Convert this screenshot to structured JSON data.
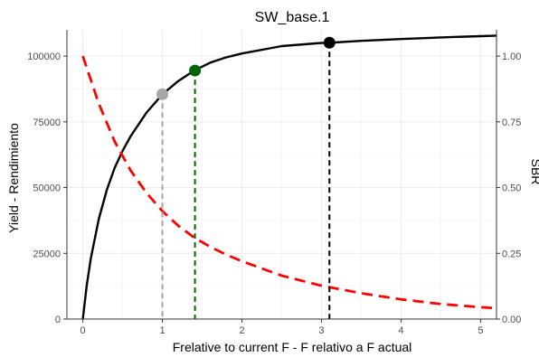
{
  "chart_data": {
    "type": "line",
    "title": "SW_base.1",
    "xlabel": "Frelative to current F - F relativo a F actual",
    "ylabel": "Yield - Rendimiento",
    "y2label": "SBR",
    "xlim": [
      -0.2,
      5.2
    ],
    "ylim": [
      0,
      110000
    ],
    "y2lim": [
      0,
      1.1
    ],
    "x_ticks": [
      0,
      1,
      2,
      3,
      4,
      5
    ],
    "y_ticks": [
      0,
      25000,
      50000,
      75000,
      100000
    ],
    "y2_ticks": [
      "0.00",
      "0.25",
      "0.50",
      "0.75",
      "1.00"
    ],
    "grid": true,
    "series": [
      {
        "axis": "left",
        "color": "#000000",
        "style": "solid",
        "x": [
          0,
          0.05,
          0.1,
          0.2,
          0.3,
          0.4,
          0.5,
          0.6,
          0.8,
          1.0,
          1.2,
          1.4,
          1.6,
          1.8,
          2.0,
          2.5,
          3.0,
          3.1,
          3.5,
          4.0,
          4.5,
          5.0,
          5.2
        ],
        "y": [
          0,
          13000,
          23000,
          38000,
          49000,
          57500,
          64000,
          69500,
          78500,
          85500,
          90500,
          94500,
          97500,
          99500,
          101000,
          103800,
          105000,
          105100,
          105800,
          106500,
          107100,
          107600,
          107800
        ]
      },
      {
        "axis": "right",
        "color": "#ff0000",
        "style": "dashed",
        "x": [
          0,
          0.2,
          0.4,
          0.6,
          0.8,
          1.0,
          1.2,
          1.4,
          1.6,
          1.8,
          2.0,
          2.5,
          3.0,
          3.5,
          4.0,
          4.5,
          5.0,
          5.2
        ],
        "y": [
          1.0,
          0.82,
          0.675,
          0.565,
          0.48,
          0.41,
          0.355,
          0.31,
          0.275,
          0.245,
          0.22,
          0.165,
          0.127,
          0.098,
          0.075,
          0.057,
          0.045,
          0.041
        ]
      }
    ],
    "reference_points": [
      {
        "x": 1.0,
        "y": 85500,
        "color": "#a6a6a6"
      },
      {
        "x": 1.41,
        "y": 94500,
        "color": "#006400"
      },
      {
        "x": 3.1,
        "y": 105100,
        "color": "#000000"
      }
    ]
  }
}
